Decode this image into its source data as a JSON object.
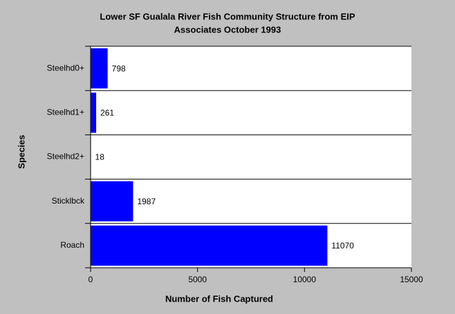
{
  "chart_data": {
    "type": "hbar",
    "title": [
      "Lower SF Gualala River Fish Community Structure from EIP",
      "Associates October 1993"
    ],
    "x_label": "Number of Fish Captured",
    "y_label": "Species",
    "categories": [
      "Steelhd0+",
      "Steelhd1+",
      "Steelhd2+",
      "Sticklbck",
      "Roach"
    ],
    "values": [
      798,
      261,
      18,
      1987,
      11070
    ],
    "color": "#0000ff",
    "xlim": [
      0,
      15000
    ],
    "xticks": [
      0,
      5000,
      10000,
      15000
    ]
  }
}
